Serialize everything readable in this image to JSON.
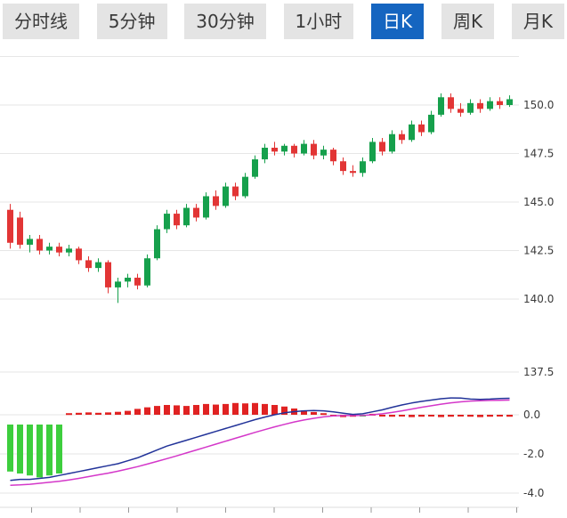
{
  "tabbar": {
    "items": [
      {
        "label": "分时线",
        "active": false
      },
      {
        "label": "5分钟",
        "active": false
      },
      {
        "label": "30分钟",
        "active": false
      },
      {
        "label": "1小时",
        "active": false
      },
      {
        "label": "日K",
        "active": true
      },
      {
        "label": "周K",
        "active": false
      },
      {
        "label": "月K",
        "active": false
      }
    ]
  },
  "colors": {
    "candle_up": "#16A04C",
    "candle_down": "#E23535",
    "macd_hist_green": "#3DCE3D",
    "macd_hist_red": "#E02222",
    "dif_line": "#223399",
    "dea_line": "#D437C9",
    "tab_active_bg": "#1565C0",
    "tab_active_text": "#FFFFFF",
    "tab_inactive_bg": "#E4E4E4",
    "grid_line": "#E6E6E6",
    "axis_text": "#3A3A3A"
  },
  "chart_data": [
    {
      "type": "candlestick",
      "title": "",
      "timeframe_selected": "日K",
      "grid": true,
      "ylim": [
        137.5,
        152.8
      ],
      "y_ticks": [
        {
          "label": "150.0",
          "value": 150.0
        },
        {
          "label": "147.5",
          "value": 147.5
        },
        {
          "label": "145.0",
          "value": 145.0
        },
        {
          "label": "142.5",
          "value": 142.5
        },
        {
          "label": "140.0",
          "value": 140.0
        },
        {
          "label": "137.5",
          "value": 137.5
        }
      ],
      "candles": [
        [
          144.6,
          144.9,
          142.6,
          142.9
        ],
        [
          144.2,
          144.5,
          142.6,
          142.8
        ],
        [
          142.8,
          143.3,
          142.4,
          143.1
        ],
        [
          143.1,
          143.3,
          142.3,
          142.5
        ],
        [
          142.5,
          142.9,
          142.3,
          142.7
        ],
        [
          142.7,
          142.9,
          142.2,
          142.4
        ],
        [
          142.4,
          142.8,
          142.2,
          142.6
        ],
        [
          142.6,
          142.7,
          141.8,
          142.0
        ],
        [
          142.0,
          142.2,
          141.4,
          141.6
        ],
        [
          141.6,
          142.1,
          141.4,
          141.9
        ],
        [
          141.9,
          142.0,
          140.3,
          140.6
        ],
        [
          140.6,
          141.1,
          139.8,
          140.9
        ],
        [
          140.9,
          141.3,
          140.6,
          141.1
        ],
        [
          141.1,
          141.3,
          140.5,
          140.7
        ],
        [
          140.7,
          142.3,
          140.6,
          142.1
        ],
        [
          142.1,
          143.8,
          142.0,
          143.6
        ],
        [
          143.6,
          144.6,
          143.4,
          144.4
        ],
        [
          144.4,
          144.6,
          143.6,
          143.8
        ],
        [
          143.8,
          144.9,
          143.7,
          144.7
        ],
        [
          144.7,
          144.9,
          144.0,
          144.2
        ],
        [
          144.2,
          145.5,
          144.1,
          145.3
        ],
        [
          145.3,
          145.6,
          144.6,
          144.8
        ],
        [
          144.8,
          146.0,
          144.7,
          145.8
        ],
        [
          145.8,
          146.0,
          145.1,
          145.3
        ],
        [
          145.3,
          146.5,
          145.2,
          146.3
        ],
        [
          146.3,
          147.4,
          146.2,
          147.2
        ],
        [
          147.2,
          148.0,
          147.0,
          147.8
        ],
        [
          147.8,
          148.1,
          147.4,
          147.6
        ],
        [
          147.6,
          148.0,
          147.4,
          147.9
        ],
        [
          147.9,
          148.0,
          147.3,
          147.5
        ],
        [
          147.5,
          148.2,
          147.4,
          148.0
        ],
        [
          148.0,
          148.2,
          147.2,
          147.4
        ],
        [
          147.4,
          147.9,
          147.2,
          147.7
        ],
        [
          147.7,
          147.8,
          146.9,
          147.1
        ],
        [
          147.1,
          147.3,
          146.4,
          146.6
        ],
        [
          146.6,
          146.9,
          146.3,
          146.5
        ],
        [
          146.5,
          147.3,
          146.3,
          147.1
        ],
        [
          147.1,
          148.3,
          147.0,
          148.1
        ],
        [
          148.1,
          148.3,
          147.4,
          147.6
        ],
        [
          147.6,
          148.7,
          147.5,
          148.5
        ],
        [
          148.5,
          148.7,
          148.0,
          148.2
        ],
        [
          148.2,
          149.2,
          148.1,
          149.0
        ],
        [
          149.0,
          149.2,
          148.4,
          148.6
        ],
        [
          148.6,
          149.7,
          148.5,
          149.5
        ],
        [
          149.5,
          150.6,
          149.4,
          150.4
        ],
        [
          150.4,
          150.6,
          149.6,
          149.8
        ],
        [
          149.8,
          150.1,
          149.4,
          149.6
        ],
        [
          149.6,
          150.3,
          149.5,
          150.1
        ],
        [
          150.1,
          150.3,
          149.6,
          149.8
        ],
        [
          149.8,
          150.4,
          149.7,
          150.2
        ],
        [
          150.2,
          150.4,
          149.8,
          150.0
        ],
        [
          150.0,
          150.5,
          149.9,
          150.3
        ]
      ]
    },
    {
      "type": "macd",
      "title": "",
      "grid": true,
      "ylim": [
        -4.6,
        1.3
      ],
      "y_ticks": [
        {
          "label": "0.0",
          "value": 0
        },
        {
          "label": "-2.0",
          "value": -2
        },
        {
          "label": "-4.0",
          "value": -4
        }
      ],
      "series": [
        {
          "name": "DIF",
          "values": [
            -3.35,
            -3.3,
            -3.3,
            -3.25,
            -3.2,
            -3.1,
            -3.0,
            -2.9,
            -2.8,
            -2.7,
            -2.6,
            -2.5,
            -2.35,
            -2.2,
            -2.0,
            -1.8,
            -1.6,
            -1.45,
            -1.3,
            -1.15,
            -1.0,
            -0.85,
            -0.7,
            -0.55,
            -0.4,
            -0.25,
            -0.12,
            0.0,
            0.1,
            0.16,
            0.2,
            0.22,
            0.2,
            0.15,
            0.08,
            0.02,
            0.05,
            0.15,
            0.25,
            0.38,
            0.5,
            0.6,
            0.68,
            0.75,
            0.82,
            0.86,
            0.85,
            0.8,
            0.78,
            0.8,
            0.83,
            0.84
          ]
        },
        {
          "name": "DEA",
          "values": [
            -3.6,
            -3.58,
            -3.55,
            -3.5,
            -3.45,
            -3.4,
            -3.33,
            -3.25,
            -3.16,
            -3.07,
            -2.98,
            -2.88,
            -2.77,
            -2.65,
            -2.52,
            -2.38,
            -2.24,
            -2.1,
            -1.95,
            -1.8,
            -1.65,
            -1.5,
            -1.35,
            -1.2,
            -1.05,
            -0.9,
            -0.76,
            -0.62,
            -0.49,
            -0.37,
            -0.27,
            -0.18,
            -0.11,
            -0.06,
            -0.04,
            -0.04,
            -0.03,
            0.0,
            0.05,
            0.12,
            0.2,
            0.29,
            0.38,
            0.46,
            0.54,
            0.61,
            0.66,
            0.7,
            0.72,
            0.73,
            0.74,
            0.75
          ]
        }
      ],
      "hist": {
        "values": [
          -2.9,
          -3.0,
          -3.1,
          -3.2,
          -3.1,
          -3.0,
          0.08,
          0.1,
          0.12,
          0.1,
          0.12,
          0.15,
          0.2,
          0.3,
          0.38,
          0.45,
          0.5,
          0.48,
          0.45,
          0.5,
          0.55,
          0.52,
          0.55,
          0.6,
          0.58,
          0.6,
          0.55,
          0.5,
          0.42,
          0.32,
          0.22,
          0.14,
          0.08,
          -0.06,
          -0.12,
          -0.1,
          -0.08,
          0.05,
          -0.06,
          -0.1,
          -0.08,
          -0.12,
          -0.1,
          -0.08,
          -0.12,
          -0.1,
          -0.08,
          -0.1,
          -0.12,
          -0.1,
          -0.08,
          -0.1
        ],
        "colors": "ggggggrrrrrrrrrrrrrrrrrrrrrrrrrrrrrrgrrrrrrrrrrrrrrrrr"
      }
    }
  ]
}
